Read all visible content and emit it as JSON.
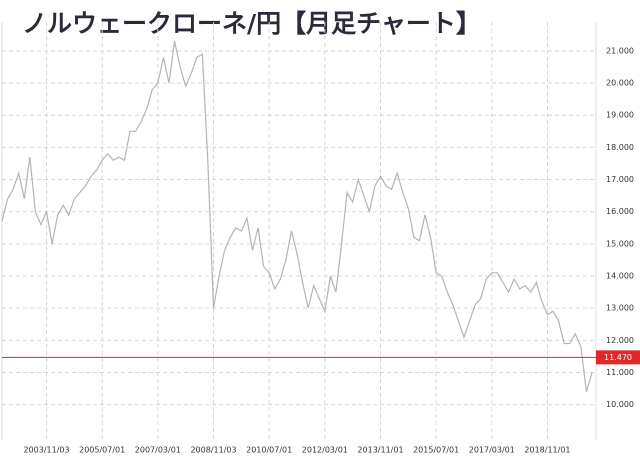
{
  "chart_data": {
    "type": "line",
    "title": "ノルウェークローネ/円【月足チャート】",
    "categories": [
      null,
      null,
      null,
      null,
      null,
      null,
      null,
      null,
      "2003/11/03",
      null,
      null,
      null,
      null,
      null,
      null,
      null,
      null,
      null,
      "2005/07/01",
      null,
      null,
      null,
      null,
      null,
      null,
      null,
      null,
      null,
      "2007/03/01",
      null,
      null,
      null,
      null,
      null,
      null,
      null,
      null,
      null,
      "2008/11/03",
      null,
      null,
      null,
      null,
      null,
      null,
      null,
      null,
      null,
      "2010/07/01",
      null,
      null,
      null,
      null,
      null,
      null,
      null,
      null,
      null,
      "2012/03/01",
      null,
      null,
      null,
      null,
      null,
      null,
      null,
      null,
      null,
      "2013/11/01",
      null,
      null,
      null,
      null,
      null,
      null,
      null,
      null,
      null,
      "2015/07/01",
      null,
      null,
      null,
      null,
      null,
      null,
      null,
      null,
      null,
      "2017/03/01",
      null,
      null,
      null,
      null,
      null,
      null,
      null,
      null,
      null,
      "2018/11/01",
      null,
      null,
      null,
      null,
      null,
      null,
      null,
      null
    ],
    "values": [
      15.7,
      16.4,
      16.7,
      17.2,
      16.4,
      17.7,
      16.0,
      15.6,
      16.0,
      15.0,
      15.9,
      16.2,
      15.9,
      16.4,
      16.6,
      16.8,
      17.1,
      17.3,
      17.6,
      17.8,
      17.6,
      17.7,
      17.6,
      18.5,
      18.5,
      18.8,
      19.2,
      19.8,
      20.0,
      20.8,
      20.0,
      21.3,
      20.5,
      19.9,
      20.3,
      20.8,
      20.9,
      17.5,
      13.0,
      14.0,
      14.8,
      15.2,
      15.5,
      15.4,
      15.8,
      14.8,
      15.5,
      14.3,
      14.1,
      13.6,
      13.9,
      14.5,
      15.4,
      14.7,
      13.8,
      13.0,
      13.7,
      13.3,
      12.9,
      14.0,
      13.5,
      15.0,
      16.6,
      16.3,
      17.0,
      16.5,
      16.0,
      16.8,
      17.1,
      16.8,
      16.7,
      17.2,
      16.6,
      16.1,
      15.2,
      15.1,
      15.9,
      15.2,
      14.1,
      14.0,
      13.5,
      13.1,
      12.6,
      12.1,
      12.6,
      13.1,
      13.3,
      13.9,
      14.1,
      14.1,
      13.8,
      13.5,
      13.9,
      13.6,
      13.7,
      13.5,
      13.8,
      13.2,
      12.8,
      12.9,
      12.6,
      11.9,
      11.9,
      12.2,
      11.8,
      10.4,
      11.0
    ],
    "color": "#b4b4b4",
    "ylim": [
      8.9,
      21.9
    ],
    "yticks": [
      {
        "value": 10,
        "label": "10.000"
      },
      {
        "value": 11,
        "label": "11.000"
      },
      {
        "value": 12,
        "label": "12.000"
      },
      {
        "value": 13,
        "label": "13.000"
      },
      {
        "value": 14,
        "label": "14.000"
      },
      {
        "value": 15,
        "label": "15.000"
      },
      {
        "value": 16,
        "label": "16.000"
      },
      {
        "value": 17,
        "label": "17.000"
      },
      {
        "value": 18,
        "label": "18.000"
      },
      {
        "value": 19,
        "label": "19.000"
      },
      {
        "value": 20,
        "label": "20.000"
      },
      {
        "value": 21,
        "label": "21.000"
      }
    ],
    "grid": true,
    "annotations": [
      {
        "value": 11.47,
        "label": "11.470",
        "color": "#e02828"
      }
    ]
  }
}
